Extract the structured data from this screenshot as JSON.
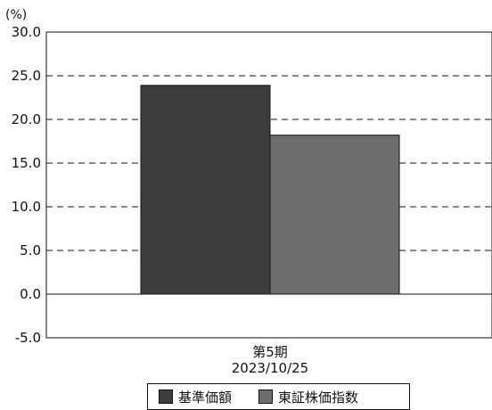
{
  "chart_data": {
    "type": "bar",
    "unit_label": "(%)",
    "categories": [
      {
        "line1": "第5期",
        "line2": "2023/10/25"
      }
    ],
    "series": [
      {
        "name": "基準価額",
        "values": [
          23.9
        ],
        "color": "#3d3d3d"
      },
      {
        "name": "東証株価指数",
        "values": [
          18.2
        ],
        "color": "#6e6e6e"
      }
    ],
    "ylim": [
      -5,
      30
    ],
    "yticks": [
      "30.0",
      "25.0",
      "20.0",
      "15.0",
      "10.0",
      "5.0",
      "0.0",
      "-5.0"
    ],
    "ytick_values": [
      30,
      25,
      20,
      15,
      10,
      5,
      0,
      -5
    ],
    "grid": "dashed",
    "legend_position": "bottom"
  }
}
